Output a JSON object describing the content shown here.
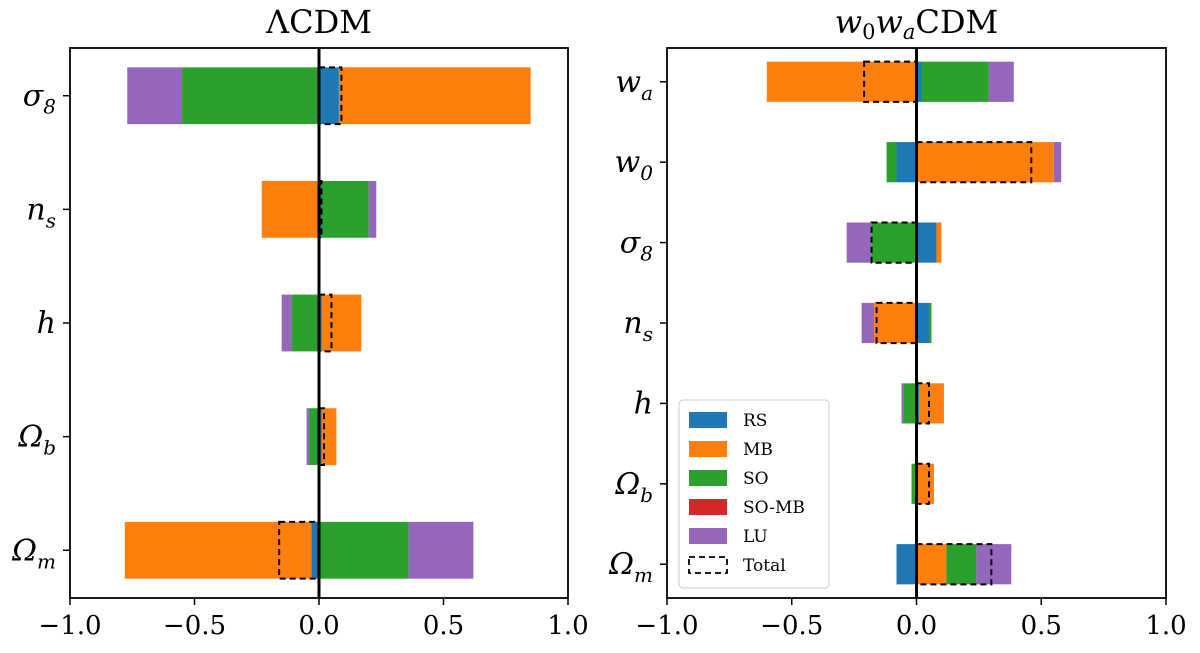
{
  "chart_data": [
    {
      "type": "bar",
      "orientation": "horizontal",
      "stacking": "diverging",
      "title": "ΛCDM",
      "categories": [
        "σ8",
        "n_s",
        "h",
        "Ω_b",
        "Ω_m"
      ],
      "category_labels": [
        {
          "base": "σ",
          "sub": "8"
        },
        {
          "base": "n",
          "sub": "s"
        },
        {
          "base": "h",
          "sub": ""
        },
        {
          "base": "Ω",
          "sub": "b"
        },
        {
          "base": "Ω",
          "sub": "m"
        }
      ],
      "xlim": [
        -1.0,
        1.0
      ],
      "xticks": [
        -1.0,
        -0.5,
        0.0,
        0.5,
        1.0
      ],
      "xtick_labels": [
        "−1.0",
        "−0.5",
        "0.0",
        "0.5",
        "1.0"
      ],
      "series": [
        {
          "name": "RS",
          "values": [
            0.08,
            0.01,
            0.01,
            0.01,
            -0.03
          ]
        },
        {
          "name": "MB",
          "values": [
            0.77,
            -0.23,
            0.16,
            0.06,
            -0.75
          ]
        },
        {
          "name": "SO",
          "values": [
            -0.55,
            0.19,
            -0.11,
            -0.04,
            0.36
          ]
        },
        {
          "name": "SO-MB",
          "values": [
            0.0,
            0.0,
            0.0,
            0.0,
            0.0
          ]
        },
        {
          "name": "LU",
          "values": [
            -0.22,
            0.03,
            -0.04,
            -0.01,
            0.26
          ]
        }
      ],
      "total": [
        0.09,
        0.01,
        0.05,
        0.02,
        -0.16
      ],
      "legend": false
    },
    {
      "type": "bar",
      "orientation": "horizontal",
      "stacking": "diverging",
      "title": "w0waCDM",
      "categories": [
        "w_a",
        "w_0",
        "σ8",
        "n_s",
        "h",
        "Ω_b",
        "Ω_m"
      ],
      "category_labels": [
        {
          "base": "w",
          "sub": "a"
        },
        {
          "base": "w",
          "sub": "0"
        },
        {
          "base": "σ",
          "sub": "8"
        },
        {
          "base": "n",
          "sub": "s"
        },
        {
          "base": "h",
          "sub": ""
        },
        {
          "base": "Ω",
          "sub": "b"
        },
        {
          "base": "Ω",
          "sub": "m"
        }
      ],
      "xlim": [
        -1.0,
        1.0
      ],
      "xticks": [
        -1.0,
        -0.5,
        0.0,
        0.5,
        1.0
      ],
      "xtick_labels": [
        "−1.0",
        "−0.5",
        "0.0",
        "0.5",
        "1.0"
      ],
      "series": [
        {
          "name": "RS",
          "values": [
            0.02,
            -0.08,
            0.08,
            0.05,
            0.01,
            0.0,
            -0.08
          ]
        },
        {
          "name": "MB",
          "values": [
            -0.6,
            0.55,
            0.02,
            -0.17,
            0.1,
            0.07,
            0.12
          ]
        },
        {
          "name": "SO",
          "values": [
            0.27,
            -0.04,
            -0.18,
            0.01,
            -0.05,
            -0.02,
            0.12
          ]
        },
        {
          "name": "SO-MB",
          "values": [
            0.0,
            0.0,
            0.0,
            0.0,
            0.0,
            0.0,
            0.0
          ]
        },
        {
          "name": "LU",
          "values": [
            0.1,
            0.03,
            -0.1,
            -0.05,
            -0.01,
            0.0,
            0.14
          ]
        }
      ],
      "total": [
        -0.21,
        0.46,
        -0.18,
        -0.16,
        0.05,
        0.05,
        0.3
      ],
      "legend": true,
      "legend_location": "lower-left"
    }
  ],
  "legend": {
    "entries": [
      "RS",
      "MB",
      "SO",
      "SO-MB",
      "LU",
      "Total"
    ]
  },
  "colors": {
    "RS": "#1f77b4",
    "MB": "#ff7f0e",
    "SO": "#2ca02c",
    "SO-MB": "#d62728",
    "LU": "#9467bd",
    "Total": "#000000"
  }
}
